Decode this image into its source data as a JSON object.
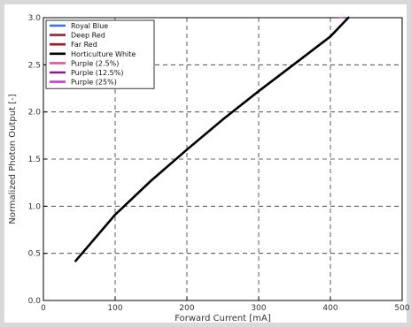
{
  "chart_data": {
    "type": "line",
    "xlabel": "Forward Current [mA]",
    "ylabel": "Normalized Photon Output [-]",
    "xlim": [
      0,
      500
    ],
    "ylim": [
      0,
      3.0
    ],
    "x_ticks": [
      "0",
      "100",
      "200",
      "300",
      "400",
      "500"
    ],
    "y_ticks": [
      "0.0",
      "0.5",
      "1.0",
      "1.5",
      "2.0",
      "2.5",
      "3.0"
    ],
    "grid": "dashed",
    "legend_placement": "top-left",
    "series": [
      {
        "name": "Royal Blue",
        "color": "#3a6fd8",
        "x": [],
        "y": []
      },
      {
        "name": "Deep Red",
        "color": "#8b2a3a",
        "x": [],
        "y": []
      },
      {
        "name": "Far Red",
        "color": "#a01818",
        "x": [],
        "y": []
      },
      {
        "name": "Horticulture White",
        "color": "#000000",
        "x": [
          45,
          100,
          150,
          200,
          250,
          300,
          350,
          400,
          425
        ],
        "y": [
          0.42,
          0.91,
          1.27,
          1.6,
          1.92,
          2.22,
          2.51,
          2.8,
          3.0
        ]
      },
      {
        "name": "Purple (2.5%)",
        "color": "#e055a8",
        "x": [],
        "y": []
      },
      {
        "name": "Purple (12.5%)",
        "color": "#8a1a8a",
        "x": [],
        "y": []
      },
      {
        "name": "Purple (25%)",
        "color": "#c93bd6",
        "x": [],
        "y": []
      }
    ]
  }
}
